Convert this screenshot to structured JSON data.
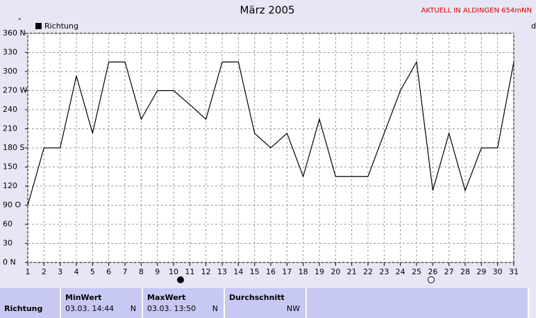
{
  "chart_data": {
    "type": "line",
    "title": "März 2005",
    "annotation": "AKTUELL IN ALDINGEN 654mNN",
    "y_unit": "°",
    "corner_label": "d",
    "x": [
      1,
      2,
      3,
      4,
      5,
      6,
      7,
      8,
      9,
      10,
      11,
      12,
      13,
      14,
      15,
      16,
      17,
      18,
      19,
      20,
      21,
      22,
      23,
      24,
      25,
      26,
      27,
      28,
      29,
      30,
      31
    ],
    "series": [
      {
        "name": "Richtung",
        "color": "#000000",
        "values": [
          90,
          180,
          180,
          293,
          203,
          315,
          315,
          225,
          270,
          270,
          248,
          225,
          315,
          315,
          203,
          180,
          203,
          135,
          225,
          135,
          135,
          135,
          203,
          270,
          315,
          113,
          203,
          113,
          180,
          180,
          315
        ]
      }
    ],
    "xlim": [
      1,
      31
    ],
    "xticks": [
      1,
      2,
      3,
      4,
      5,
      6,
      7,
      8,
      9,
      10,
      11,
      12,
      13,
      14,
      15,
      16,
      17,
      18,
      19,
      20,
      21,
      22,
      23,
      24,
      25,
      26,
      27,
      28,
      29,
      30,
      31
    ],
    "ylim": [
      0,
      360
    ],
    "yticks": [
      {
        "value": 0,
        "label": "0 N"
      },
      30,
      60,
      {
        "value": 90,
        "label": "90 O"
      },
      120,
      150,
      {
        "value": 180,
        "label": "180 S"
      },
      210,
      240,
      {
        "value": 270,
        "label": "270 W"
      },
      300,
      330,
      {
        "value": 360,
        "label": "360 N"
      }
    ],
    "grid": true,
    "legend": "top-left"
  },
  "table": {
    "headers": [
      "MinWert",
      "MaxWert",
      "Durchschnitt"
    ],
    "row": {
      "label": "Richtung",
      "min_time": "03.03.  14:44",
      "min_dir": "N",
      "max_time": "03.03.  13:50",
      "max_dir": "N",
      "avg": "NW"
    }
  }
}
